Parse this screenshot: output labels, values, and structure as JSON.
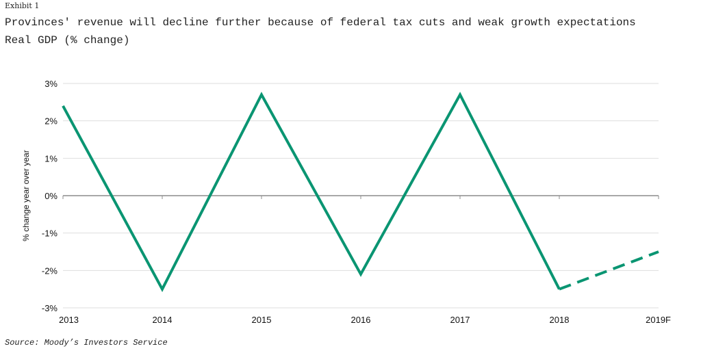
{
  "header": {
    "exhibit": "Exhibit 1",
    "title": "Provinces' revenue will decline further because of federal tax cuts and weak growth expectations",
    "subtitle": "Real GDP (% change)"
  },
  "footer": {
    "source": "Source: Moody’s Investors Service"
  },
  "chart_data": {
    "type": "line",
    "ylabel": "% change year over year",
    "x": [
      "2013",
      "2014",
      "2015",
      "2016",
      "2017",
      "2018",
      "2019F"
    ],
    "y_ticks": [
      3,
      2,
      1,
      0,
      -1,
      -2,
      -3
    ],
    "y_tick_labels": [
      "3%",
      "2%",
      "1%",
      "0%",
      "-1%",
      "-2%",
      "-3%"
    ],
    "ylim": [
      -3,
      3
    ],
    "grid": true,
    "series": [
      {
        "values": [
          2.4,
          -2.5,
          2.7,
          -2.1,
          2.7,
          -2.5,
          null
        ],
        "color": "#0a9572",
        "style": "solid"
      },
      {
        "values": [
          null,
          null,
          null,
          null,
          null,
          -2.5,
          -1.5
        ],
        "color": "#0a9572",
        "style": "dashed"
      }
    ]
  }
}
